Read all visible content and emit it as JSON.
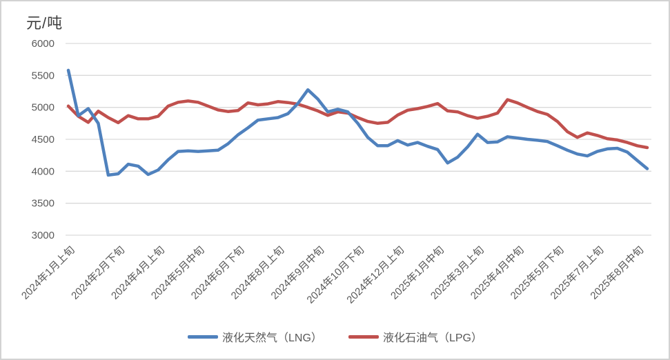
{
  "chart": {
    "unit_label": "元/吨",
    "background": "#ffffff",
    "border_color": "#d2d2d2",
    "grid_color": "#d9d9d9",
    "axis_text_color": "#595959",
    "title_color": "#3d3d3d"
  },
  "chart_data": {
    "type": "line",
    "title": "元/吨",
    "ylabel": "元/吨",
    "xlabel": "",
    "ylim": [
      3000,
      6000
    ],
    "ytick_step": 500,
    "y_tick_labels": [
      "6000",
      "5500",
      "5000",
      "4500",
      "4000",
      "3500",
      "3000"
    ],
    "grid": true,
    "legend_position": "bottom",
    "x_tick_labels": [
      "2024年1月上旬",
      "2024年2月下旬",
      "2024年4月上旬",
      "2024年5月中旬",
      "2024年6月下旬",
      "2024年8月上旬",
      "2024年9月中旬",
      "2024年10月下旬",
      "2024年12月上旬",
      "2025年1月中旬",
      "2025年3月上旬",
      "2025年4月中旬",
      "2025年5月下旬",
      "2025年7月上旬",
      "2025年8月中旬"
    ],
    "x_tick_indices": [
      0,
      5,
      9,
      13,
      17,
      21,
      25,
      29,
      33,
      37,
      41,
      45,
      49,
      53,
      57
    ],
    "n_points": 59,
    "series": [
      {
        "name": "液化天然气（LNG）",
        "color": "#4F81BD",
        "values": [
          5580,
          4870,
          4980,
          4750,
          3940,
          3960,
          4110,
          4080,
          3950,
          4020,
          4180,
          4310,
          4320,
          4310,
          4320,
          4330,
          4430,
          4570,
          4680,
          4800,
          4820,
          4840,
          4900,
          5060,
          5275,
          5130,
          4930,
          4970,
          4930,
          4750,
          4530,
          4400,
          4400,
          4480,
          4410,
          4450,
          4390,
          4340,
          4130,
          4220,
          4380,
          4580,
          4450,
          4460,
          4540,
          4520,
          4500,
          4485,
          4465,
          4400,
          4330,
          4270,
          4240,
          4310,
          4350,
          4360,
          4300,
          4170,
          4040
        ]
      },
      {
        "name": "液化石油气（LPG）",
        "color": "#C0504D",
        "values": [
          5020,
          4860,
          4765,
          4940,
          4840,
          4760,
          4870,
          4820,
          4820,
          4860,
          5020,
          5080,
          5100,
          5080,
          5020,
          4960,
          4935,
          4950,
          5070,
          5040,
          5055,
          5090,
          5075,
          5050,
          5000,
          4945,
          4875,
          4930,
          4910,
          4840,
          4780,
          4750,
          4765,
          4880,
          4955,
          4980,
          5015,
          5060,
          4945,
          4930,
          4870,
          4830,
          4860,
          4910,
          5120,
          5070,
          5000,
          4935,
          4890,
          4780,
          4620,
          4530,
          4600,
          4560,
          4510,
          4490,
          4450,
          4400,
          4370
        ]
      }
    ]
  }
}
